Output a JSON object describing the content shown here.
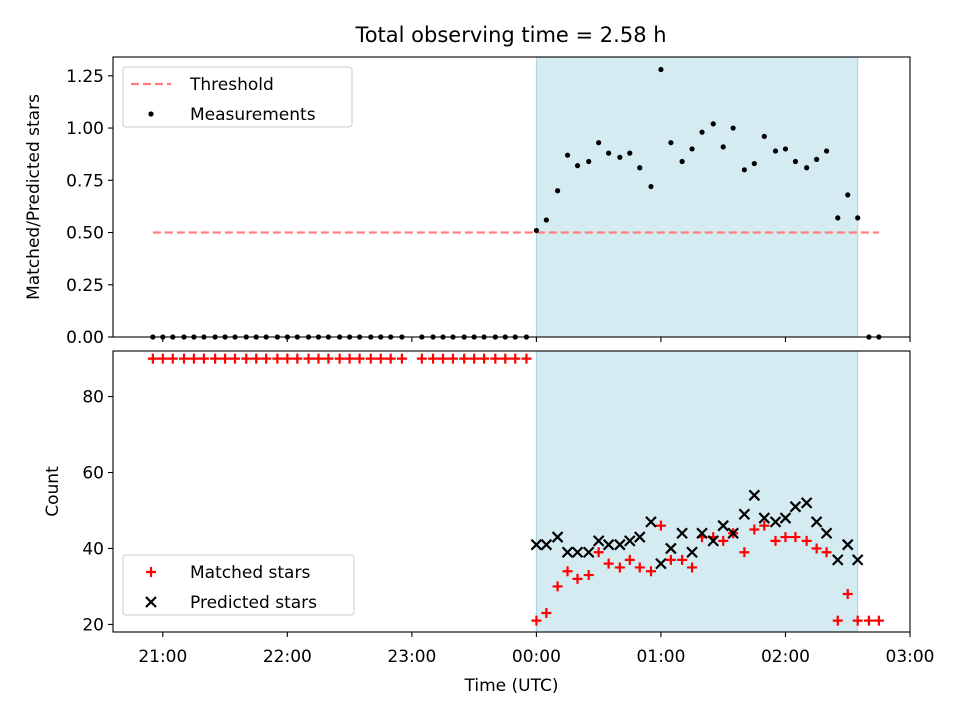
{
  "title": "Total observing time = 2.58 h",
  "colors": {
    "threshold": "#ff7f7f",
    "measurement": "#000000",
    "matched": "#ff0000",
    "predicted": "#000000",
    "observing_window": "#d4ebf2",
    "observing_window_edge": "#a9d3e0"
  },
  "chart_data": [
    {
      "type": "scatter",
      "title": "Total observing time = 2.58 h",
      "ylabel": "Matched/Predicted stars",
      "xlabel": "",
      "x_unit": "hours since 00:00 UTC",
      "xlim": [
        -3.4,
        3.0
      ],
      "ylim": [
        0,
        1.34
      ],
      "yticks": [
        "0.00",
        "0.25",
        "0.50",
        "0.75",
        "1.00",
        "1.25"
      ],
      "ytick_values": [
        0,
        0.25,
        0.5,
        0.75,
        1.0,
        1.25
      ],
      "shaded_interval": [
        0.0,
        2.58
      ],
      "legend": {
        "placement": "upper-left",
        "entries": [
          "Threshold",
          "Measurements"
        ]
      },
      "threshold": {
        "name": "Threshold",
        "value": 0.5,
        "x_range": [
          -3.08,
          2.75
        ]
      },
      "series": [
        {
          "name": "Measurements",
          "x": [
            -3.08,
            -3.0,
            -2.92,
            -2.83,
            -2.75,
            -2.67,
            -2.58,
            -2.5,
            -2.42,
            -2.33,
            -2.25,
            -2.17,
            -2.08,
            -2.0,
            -1.92,
            -1.83,
            -1.75,
            -1.67,
            -1.58,
            -1.5,
            -1.42,
            -1.33,
            -1.25,
            -1.17,
            -1.08,
            -0.92,
            -0.83,
            -0.75,
            -0.67,
            -0.58,
            -0.5,
            -0.42,
            -0.33,
            -0.25,
            -0.17,
            -0.08,
            0.0,
            0.08,
            0.17,
            0.25,
            0.33,
            0.42,
            0.5,
            0.58,
            0.67,
            0.75,
            0.83,
            0.92,
            1.0,
            1.08,
            1.17,
            1.25,
            1.33,
            1.42,
            1.5,
            1.58,
            1.67,
            1.75,
            1.83,
            1.92,
            2.0,
            2.08,
            2.17,
            2.25,
            2.33,
            2.42,
            2.5,
            2.58,
            2.67,
            2.75
          ],
          "y": [
            0,
            0,
            0,
            0,
            0,
            0,
            0,
            0,
            0,
            0,
            0,
            0,
            0,
            0,
            0,
            0,
            0,
            0,
            0,
            0,
            0,
            0,
            0,
            0,
            0,
            0,
            0,
            0,
            0,
            0,
            0,
            0,
            0,
            0,
            0,
            0,
            0.51,
            0.56,
            0.7,
            0.87,
            0.82,
            0.84,
            0.93,
            0.88,
            0.86,
            0.88,
            0.81,
            0.72,
            1.28,
            0.93,
            0.84,
            0.9,
            0.98,
            1.02,
            0.91,
            1.0,
            0.8,
            0.83,
            0.96,
            0.89,
            0.9,
            0.84,
            0.81,
            0.85,
            0.89,
            0.57,
            0.68,
            0.57,
            0,
            0
          ]
        }
      ]
    },
    {
      "type": "scatter",
      "title": "",
      "xlabel": "Time (UTC)",
      "ylabel": "Count",
      "x_unit": "hours since 00:00 UTC",
      "xlim": [
        -3.4,
        3.0
      ],
      "ylim": [
        18,
        92
      ],
      "xticks": [
        "21:00",
        "22:00",
        "23:00",
        "00:00",
        "01:00",
        "02:00",
        "03:00"
      ],
      "xtick_values": [
        -3,
        -2,
        -1,
        0,
        1,
        2,
        3
      ],
      "yticks": [
        "20",
        "40",
        "60",
        "80"
      ],
      "ytick_values": [
        20,
        40,
        60,
        80
      ],
      "shaded_interval": [
        0.0,
        2.58
      ],
      "legend": {
        "placement": "lower-left",
        "entries": [
          "Matched stars",
          "Predicted stars"
        ]
      },
      "series": [
        {
          "name": "Matched stars",
          "marker": "plus",
          "x": [
            -3.08,
            -3.0,
            -2.92,
            -2.83,
            -2.75,
            -2.67,
            -2.58,
            -2.5,
            -2.42,
            -2.33,
            -2.25,
            -2.17,
            -2.08,
            -2.0,
            -1.92,
            -1.83,
            -1.75,
            -1.67,
            -1.58,
            -1.5,
            -1.42,
            -1.33,
            -1.25,
            -1.17,
            -1.08,
            -0.92,
            -0.83,
            -0.75,
            -0.67,
            -0.58,
            -0.5,
            -0.42,
            -0.33,
            -0.25,
            -0.17,
            -0.08,
            0.0,
            0.08,
            0.17,
            0.25,
            0.33,
            0.42,
            0.5,
            0.58,
            0.67,
            0.75,
            0.83,
            0.92,
            1.0,
            1.08,
            1.17,
            1.25,
            1.33,
            1.42,
            1.5,
            1.58,
            1.67,
            1.75,
            1.83,
            1.92,
            2.0,
            2.08,
            2.17,
            2.25,
            2.33,
            2.42,
            2.5,
            2.58,
            2.67,
            2.75
          ],
          "y": [
            90,
            90,
            90,
            90,
            90,
            90,
            90,
            90,
            90,
            90,
            90,
            90,
            90,
            90,
            90,
            90,
            90,
            90,
            90,
            90,
            90,
            90,
            90,
            90,
            90,
            90,
            90,
            90,
            90,
            90,
            90,
            90,
            90,
            90,
            90,
            90,
            21,
            23,
            30,
            34,
            32,
            33,
            39,
            36,
            35,
            37,
            35,
            34,
            46,
            37,
            37,
            35,
            43,
            43,
            42,
            44,
            39,
            45,
            46,
            42,
            43,
            43,
            42,
            40,
            39,
            21,
            28,
            21,
            21,
            21
          ]
        },
        {
          "name": "Predicted stars",
          "marker": "x",
          "x": [
            0.0,
            0.08,
            0.17,
            0.25,
            0.33,
            0.42,
            0.5,
            0.58,
            0.67,
            0.75,
            0.83,
            0.92,
            1.0,
            1.08,
            1.17,
            1.25,
            1.33,
            1.42,
            1.5,
            1.58,
            1.67,
            1.75,
            1.83,
            1.92,
            2.0,
            2.08,
            2.17,
            2.25,
            2.33,
            2.42,
            2.5,
            2.58
          ],
          "y": [
            41,
            41,
            43,
            39,
            39,
            39,
            42,
            41,
            41,
            42,
            43,
            47,
            36,
            40,
            44,
            39,
            44,
            42,
            46,
            44,
            49,
            54,
            48,
            47,
            48,
            51,
            52,
            47,
            44,
            37,
            41,
            37
          ]
        }
      ]
    }
  ]
}
